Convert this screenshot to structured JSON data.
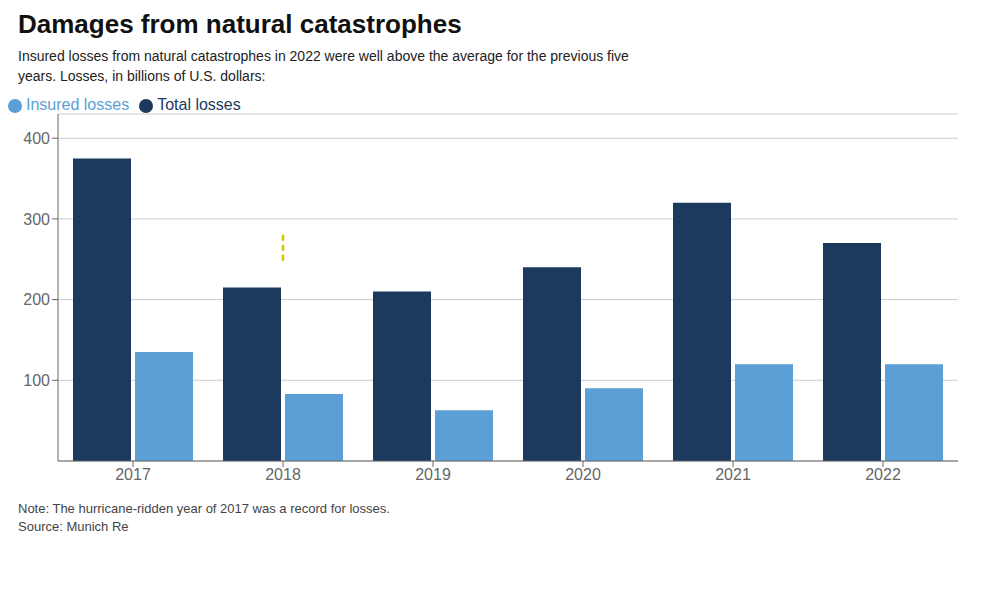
{
  "chart_data": {
    "type": "bar",
    "title": "Damages from natural catastrophes",
    "subtitle": "Insured losses from natural catastrophes in 2022 were well above the average for the previous five\nyears. Losses, in billions of U.S. dollars:",
    "categories": [
      "2017",
      "2018",
      "2019",
      "2020",
      "2021",
      "2022"
    ],
    "series": [
      {
        "name": "Total losses",
        "color": "#1b3a5e",
        "values": [
          375,
          215,
          210,
          240,
          320,
          270
        ]
      },
      {
        "name": "Insured losses",
        "color": "#5b9fd6",
        "values": [
          135,
          83,
          63,
          90,
          120,
          120
        ]
      }
    ],
    "ylim": [
      0,
      430
    ],
    "yticks": [
      100,
      200,
      300,
      400
    ],
    "grid": true,
    "legend": "top",
    "annotations": [
      {
        "type": "line",
        "category": "2018",
        "y": [
          248,
          282
        ],
        "color": "#d4c400",
        "line_style": "dashed"
      }
    ],
    "note": "Note: The hurricane-ridden year of 2017 was a record for losses.",
    "source": "Source: Munich Re"
  }
}
